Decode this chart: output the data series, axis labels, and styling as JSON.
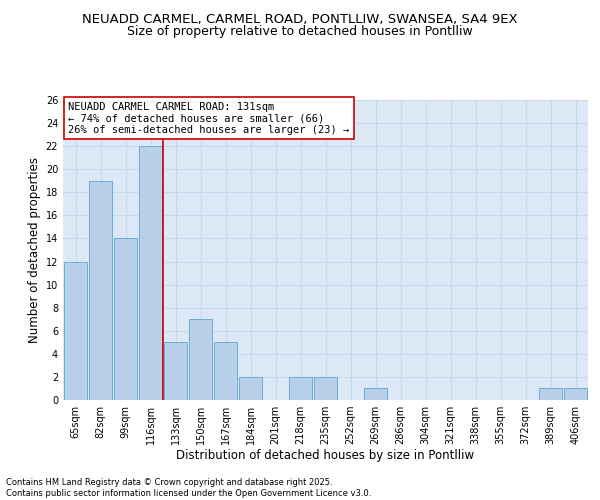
{
  "title1": "NEUADD CARMEL, CARMEL ROAD, PONTLLIW, SWANSEA, SA4 9EX",
  "title2": "Size of property relative to detached houses in Pontlliw",
  "xlabel": "Distribution of detached houses by size in Pontlliw",
  "ylabel": "Number of detached properties",
  "categories": [
    "65sqm",
    "82sqm",
    "99sqm",
    "116sqm",
    "133sqm",
    "150sqm",
    "167sqm",
    "184sqm",
    "201sqm",
    "218sqm",
    "235sqm",
    "252sqm",
    "269sqm",
    "286sqm",
    "304sqm",
    "321sqm",
    "338sqm",
    "355sqm",
    "372sqm",
    "389sqm",
    "406sqm"
  ],
  "values": [
    12,
    19,
    14,
    22,
    5,
    7,
    5,
    2,
    0,
    2,
    2,
    0,
    1,
    0,
    0,
    0,
    0,
    0,
    0,
    1,
    1
  ],
  "bar_color": "#b8d0ea",
  "bar_edge_color": "#6aaed6",
  "ref_line_color": "#cc0000",
  "ref_line_x": 3.5,
  "annotation_text": "NEUADD CARMEL CARMEL ROAD: 131sqm\n← 74% of detached houses are smaller (66)\n26% of semi-detached houses are larger (23) →",
  "annotation_box_color": "#ffffff",
  "annotation_box_edge_color": "#cc0000",
  "ylim": [
    0,
    26
  ],
  "yticks": [
    0,
    2,
    4,
    6,
    8,
    10,
    12,
    14,
    16,
    18,
    20,
    22,
    24,
    26
  ],
  "grid_color": "#c8d8e8",
  "background_color": "#dce8f5",
  "footer_text": "Contains HM Land Registry data © Crown copyright and database right 2025.\nContains public sector information licensed under the Open Government Licence v3.0.",
  "title1_fontsize": 9.5,
  "title2_fontsize": 9,
  "axis_label_fontsize": 8.5,
  "tick_fontsize": 7,
  "annotation_fontsize": 7.5,
  "footer_fontsize": 6
}
